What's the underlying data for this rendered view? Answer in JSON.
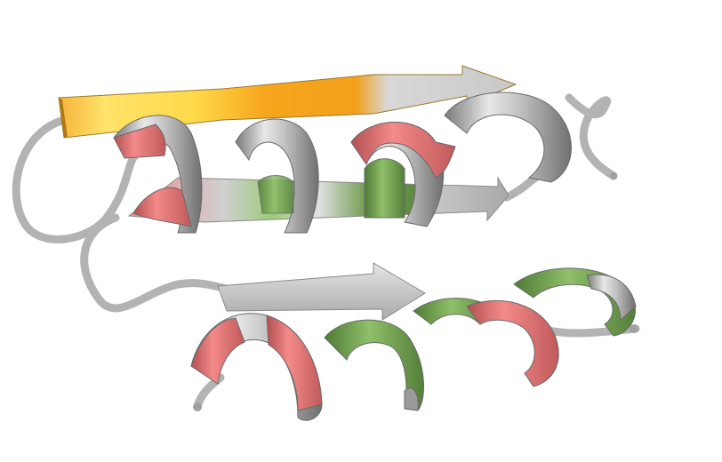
{
  "scene": {
    "description_label": "",
    "colors": {
      "background": "#ffffff",
      "coil": "#b8b8b8",
      "coil_shadow": "#8a8a8a",
      "helix_gray": "#c4c4c4",
      "helix_gray_dark": "#7f7f7f",
      "helix_red": "#ee7a7a",
      "helix_red_dark": "#b85454",
      "helix_green": "#6f9a4e",
      "helix_green_light": "#a9cf86",
      "strand_yellow": "#ffe36a",
      "strand_orange": "#f4a21c",
      "strand_gray": "#c9c9c9",
      "strand_gray_dark": "#8c8c8c"
    }
  }
}
